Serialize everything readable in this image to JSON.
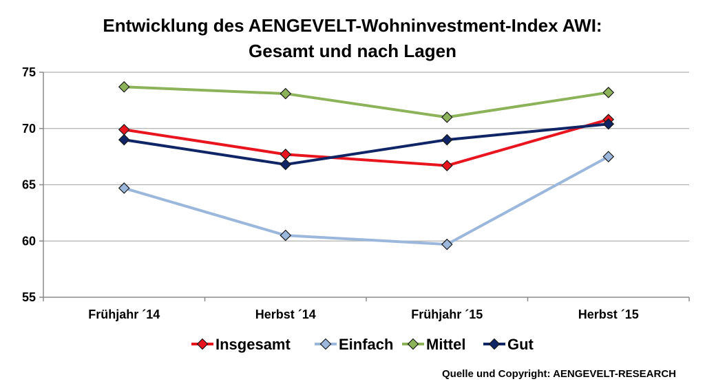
{
  "chart_data": {
    "type": "line",
    "title_line1": "Entwicklung des AENGEVELT-Wohninvestment-Index AWI:",
    "title_line2": "Gesamt und nach Lagen",
    "categories": [
      "Frühjahr ´14",
      "Herbst ´14",
      "Frühjahr ´15",
      "Herbst ´15"
    ],
    "ylim": [
      55,
      75
    ],
    "yticks": [
      55,
      60,
      65,
      70,
      75
    ],
    "grid": true,
    "legend_position": "bottom",
    "series": [
      {
        "name": "Insgesamt",
        "color": "#e8141e",
        "values": [
          69.9,
          67.7,
          66.7,
          70.8
        ]
      },
      {
        "name": "Einfach",
        "color": "#9bb8dc",
        "values": [
          64.7,
          60.5,
          59.7,
          67.5
        ]
      },
      {
        "name": "Mittel",
        "color": "#8db35a",
        "values": [
          73.7,
          73.1,
          71.0,
          73.2
        ]
      },
      {
        "name": "Gut",
        "color": "#0f2566",
        "values": [
          69.0,
          66.8,
          69.0,
          70.4
        ]
      }
    ]
  },
  "source": "Quelle und Copyright: AENGEVELT-RESEARCH"
}
